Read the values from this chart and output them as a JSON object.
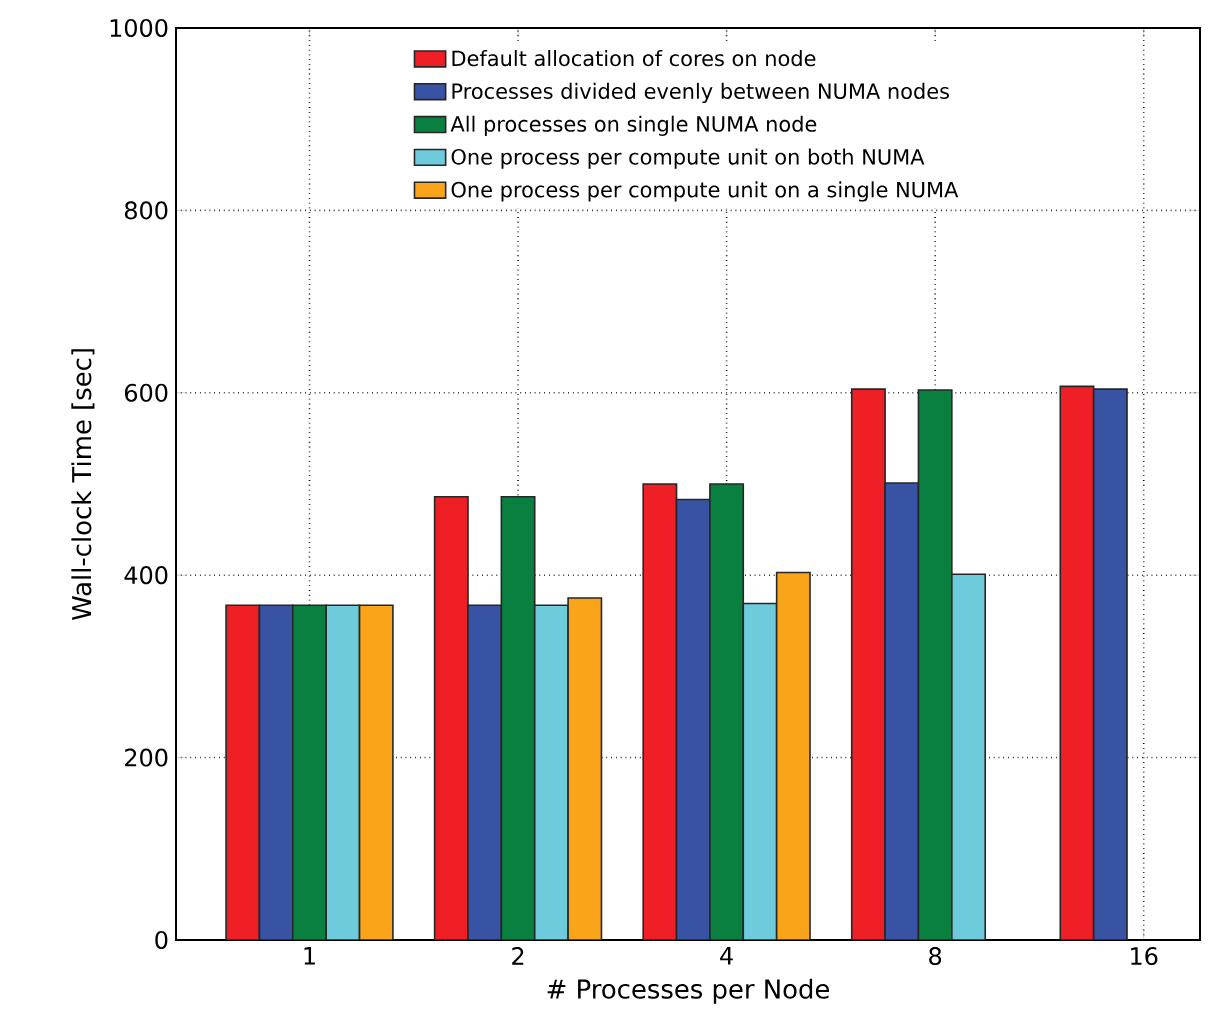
{
  "chart_data": {
    "type": "bar",
    "xlabel": "# Processes per Node",
    "ylabel": "Wall-clock Time [sec]",
    "categories": [
      "1",
      "2",
      "4",
      "8",
      "16"
    ],
    "ylim": [
      0,
      1000
    ],
    "yticks": [
      0,
      200,
      400,
      600,
      800,
      1000
    ],
    "grid": true,
    "legend": "top",
    "series": [
      {
        "name": "Default allocation of cores on node",
        "color": "#ee2026",
        "values": [
          367,
          486,
          500,
          604,
          607
        ]
      },
      {
        "name": "Processes divided evenly between NUMA nodes",
        "color": "#3953a4",
        "values": [
          367,
          367,
          483,
          501,
          604
        ]
      },
      {
        "name": "All processes on single NUMA node",
        "color": "#0a8040",
        "values": [
          367,
          486,
          500,
          603,
          null
        ]
      },
      {
        "name": "One process per compute unit on both NUMA",
        "color": "#6ecbdc",
        "values": [
          367,
          367,
          369,
          401,
          null
        ]
      },
      {
        "name": "One process per compute unit on a single NUMA",
        "color": "#faa41a",
        "values": [
          367,
          375,
          403,
          null,
          null
        ]
      }
    ]
  }
}
